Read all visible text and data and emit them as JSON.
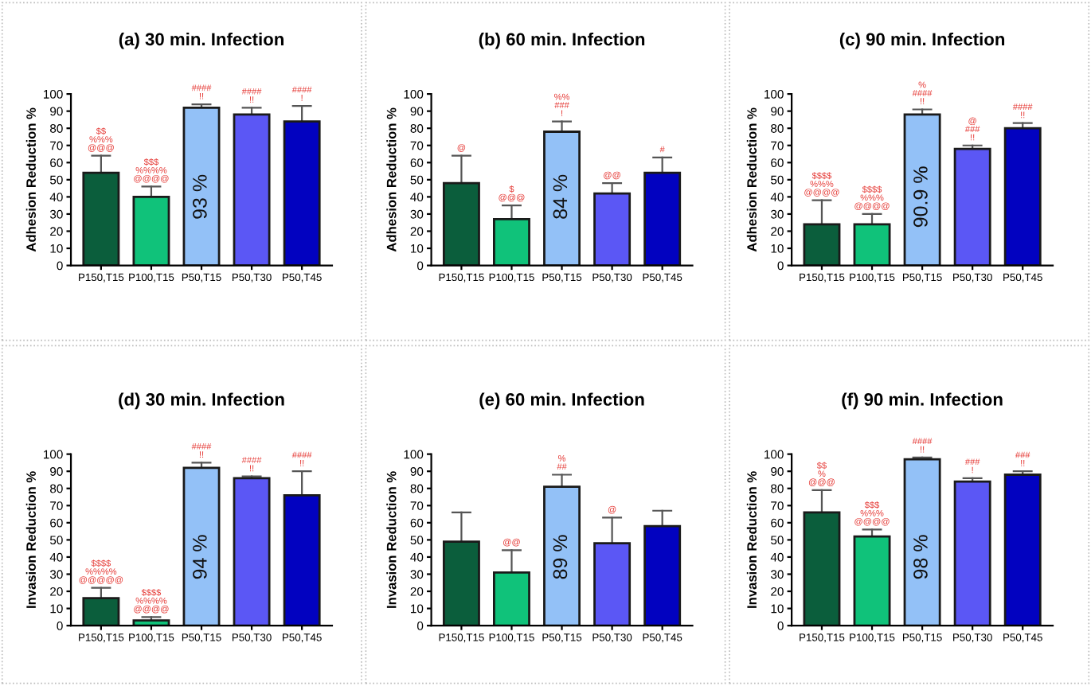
{
  "chart_data": [
    {
      "type": "bar",
      "title": "(a) 30 min. Infection",
      "ylabel": "Adhesion Reduction %",
      "categories": [
        "P150,T15",
        "P100,T15",
        "P50,T15",
        "P50,T30",
        "P50,T45"
      ],
      "values": [
        54,
        40,
        92,
        88,
        84
      ],
      "colors": [
        "#0b5e3c",
        "#10c27a",
        "#93c1f7",
        "#5b57f5",
        "#0202c0"
      ],
      "errors": [
        [
          54,
          64
        ],
        [
          40,
          46
        ],
        [
          92,
          94
        ],
        [
          88,
          92
        ],
        [
          84,
          93
        ]
      ],
      "ylim": [
        0,
        100
      ],
      "yticks": [
        0,
        10,
        20,
        30,
        40,
        50,
        60,
        70,
        80,
        90,
        100
      ],
      "annotations": [
        {
          "text": "$$\n%%%\n@@@",
          "x": "P150,T15",
          "y": 64
        },
        {
          "text": "$$$\n%%%%\n@@@@",
          "x": "P100,T15",
          "y": 46
        },
        {
          "text": "####\n!!",
          "x": "P50,T15",
          "y": 94
        },
        {
          "text": "####\n!!",
          "x": "P50,T30",
          "y": 92
        },
        {
          "text": "####\n!",
          "x": "P50,T45",
          "y": 93
        },
        "93 %"
      ]
    },
    {
      "type": "bar",
      "title": "(b) 60 min. Infection",
      "ylabel": "Adhesion Reduction %",
      "categories": [
        "P150,T15",
        "P100,T15",
        "P50,T15",
        "P50,T30",
        "P50,T45"
      ],
      "values": [
        48,
        27,
        78,
        42,
        54
      ],
      "colors": [
        "#0b5e3c",
        "#10c27a",
        "#93c1f7",
        "#5b57f5",
        "#0202c0"
      ],
      "errors": [
        [
          48,
          64
        ],
        [
          27,
          35
        ],
        [
          78,
          84
        ],
        [
          42,
          48
        ],
        [
          54,
          63
        ]
      ],
      "ylim": [
        0,
        100
      ],
      "yticks": [
        0,
        10,
        20,
        30,
        40,
        50,
        60,
        70,
        80,
        90,
        100
      ],
      "annotations": [
        {
          "text": "@",
          "x": "P150,T15",
          "y": 64
        },
        {
          "text": "$\n@@@",
          "x": "P100,T15",
          "y": 35
        },
        {
          "text": "%%\n###\n!",
          "x": "P50,T15",
          "y": 84
        },
        {
          "text": "@@",
          "x": "P50,T30",
          "y": 48
        },
        {
          "text": "#",
          "x": "P50,T45",
          "y": 63
        },
        "84 %"
      ]
    },
    {
      "type": "bar",
      "title": "(c) 90 min. Infection",
      "ylabel": "Adhesion Reduction %",
      "categories": [
        "P150,T15",
        "P100,T15",
        "P50,T15",
        "P50,T30",
        "P50,T45"
      ],
      "values": [
        24,
        24,
        88,
        68,
        80
      ],
      "colors": [
        "#0b5e3c",
        "#10c27a",
        "#93c1f7",
        "#5b57f5",
        "#0202c0"
      ],
      "errors": [
        [
          24,
          38
        ],
        [
          24,
          30
        ],
        [
          88,
          91
        ],
        [
          68,
          70
        ],
        [
          80,
          83
        ]
      ],
      "ylim": [
        0,
        100
      ],
      "yticks": [
        0,
        10,
        20,
        30,
        40,
        50,
        60,
        70,
        80,
        90,
        100
      ],
      "annotations": [
        {
          "text": "$$$$\n%%%\n@@@@",
          "x": "P150,T15",
          "y": 38
        },
        {
          "text": "$$$$\n%%%\n@@@@",
          "x": "P100,T15",
          "y": 30
        },
        {
          "text": "%\n####\n!!",
          "x": "P50,T15",
          "y": 91
        },
        {
          "text": "@\n###\n!!",
          "x": "P50,T30",
          "y": 70
        },
        {
          "text": "####\n!!",
          "x": "P50,T45",
          "y": 83
        },
        "90.9 %"
      ]
    },
    {
      "type": "bar",
      "title": "(d) 30 min. Infection",
      "ylabel": "Invasion Reduction %",
      "categories": [
        "P150,T15",
        "P100,T15",
        "P50,T15",
        "P50,T30",
        "P50,T45"
      ],
      "values": [
        16,
        3,
        92,
        86,
        76
      ],
      "colors": [
        "#0b5e3c",
        "#10c27a",
        "#93c1f7",
        "#5b57f5",
        "#0202c0"
      ],
      "errors": [
        [
          16,
          22
        ],
        [
          3,
          5
        ],
        [
          92,
          95
        ],
        [
          86,
          87
        ],
        [
          76,
          90
        ]
      ],
      "ylim": [
        0,
        100
      ],
      "yticks": [
        0,
        10,
        20,
        30,
        40,
        50,
        60,
        70,
        80,
        90,
        100
      ],
      "annotations": [
        {
          "text": "$$$$\n%%%%\n@@@@@",
          "x": "P150,T15",
          "y": 22
        },
        {
          "text": "$$$$\n%%%%\n@@@@",
          "x": "P100,T15",
          "y": 5
        },
        {
          "text": "####\n!!",
          "x": "P50,T15",
          "y": 95
        },
        {
          "text": "####\n!!",
          "x": "P50,T30",
          "y": 87
        },
        {
          "text": "####\n!!",
          "x": "P50,T45",
          "y": 90
        },
        "94 %"
      ]
    },
    {
      "type": "bar",
      "title": "(e) 60 min. Infection",
      "ylabel": "Invasion Reduction %",
      "categories": [
        "P150,T15",
        "P100,T15",
        "P50,T15",
        "P50,T30",
        "P50,T45"
      ],
      "values": [
        49,
        31,
        81,
        48,
        58
      ],
      "colors": [
        "#0b5e3c",
        "#10c27a",
        "#93c1f7",
        "#5b57f5",
        "#0202c0"
      ],
      "errors": [
        [
          49,
          66
        ],
        [
          31,
          44
        ],
        [
          81,
          88
        ],
        [
          48,
          63
        ],
        [
          58,
          67
        ]
      ],
      "ylim": [
        0,
        100
      ],
      "yticks": [
        0,
        10,
        20,
        30,
        40,
        50,
        60,
        70,
        80,
        90,
        100
      ],
      "annotations": [
        {
          "text": "@@",
          "x": "P100,T15",
          "y": 44
        },
        {
          "text": "%\n##",
          "x": "P50,T15",
          "y": 88
        },
        {
          "text": "@",
          "x": "P50,T30",
          "y": 63
        },
        "89 %"
      ]
    },
    {
      "type": "bar",
      "title": "(f) 90 min. Infection",
      "ylabel": "Invasion Reduction %",
      "categories": [
        "P150,T15",
        "P100,T15",
        "P50,T15",
        "P50,T30",
        "P50,T45"
      ],
      "values": [
        66,
        52,
        97,
        84,
        88
      ],
      "colors": [
        "#0b5e3c",
        "#10c27a",
        "#93c1f7",
        "#5b57f5",
        "#0202c0"
      ],
      "errors": [
        [
          66,
          79
        ],
        [
          52,
          56
        ],
        [
          97,
          98
        ],
        [
          84,
          86
        ],
        [
          88,
          90
        ]
      ],
      "ylim": [
        0,
        100
      ],
      "yticks": [
        0,
        10,
        20,
        30,
        40,
        50,
        60,
        70,
        80,
        90,
        100
      ],
      "annotations": [
        {
          "text": "$$\n%\n@@@",
          "x": "P150,T15",
          "y": 79
        },
        {
          "text": "$$$\n%%%\n@@@@",
          "x": "P100,T15",
          "y": 56
        },
        {
          "text": "####\n!!",
          "x": "P50,T15",
          "y": 98
        },
        {
          "text": "###\n!",
          "x": "P50,T30",
          "y": 86
        },
        {
          "text": "###\n!!",
          "x": "P50,T45",
          "y": 90
        },
        "98 %"
      ]
    }
  ]
}
